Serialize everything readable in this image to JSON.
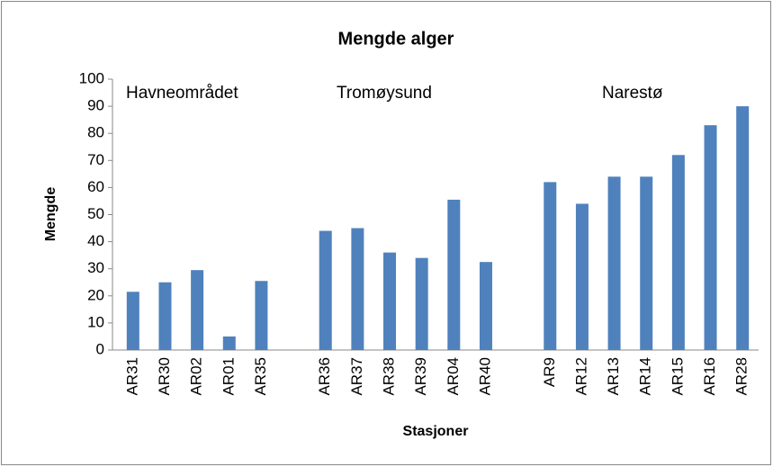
{
  "chart_data": {
    "type": "bar",
    "title": "Mengde alger",
    "x_label": "Stasjoner",
    "y_label": "Mengde",
    "annotations": [
      "Havneområdet",
      "Tromøysund",
      "Narestø"
    ],
    "categories": [
      "AR31",
      "AR30",
      "AR02",
      "AR01",
      "AR35",
      null,
      "AR36",
      "AR37",
      "AR38",
      "AR39",
      "AR04",
      "AR40",
      null,
      "AR9",
      "AR12",
      "AR13",
      "AR14",
      "AR15",
      "AR16",
      "AR28"
    ],
    "values": [
      21.5,
      25,
      29.5,
      5,
      25.5,
      null,
      44,
      45,
      36,
      34,
      55.5,
      32.5,
      null,
      62,
      54,
      64,
      64,
      72,
      83,
      90
    ],
    "color": "#4f81bd",
    "ylim": [
      0,
      100
    ],
    "yticks": [
      0,
      10,
      20,
      30,
      40,
      50,
      60,
      70,
      80,
      90,
      100
    ],
    "grid": false
  }
}
